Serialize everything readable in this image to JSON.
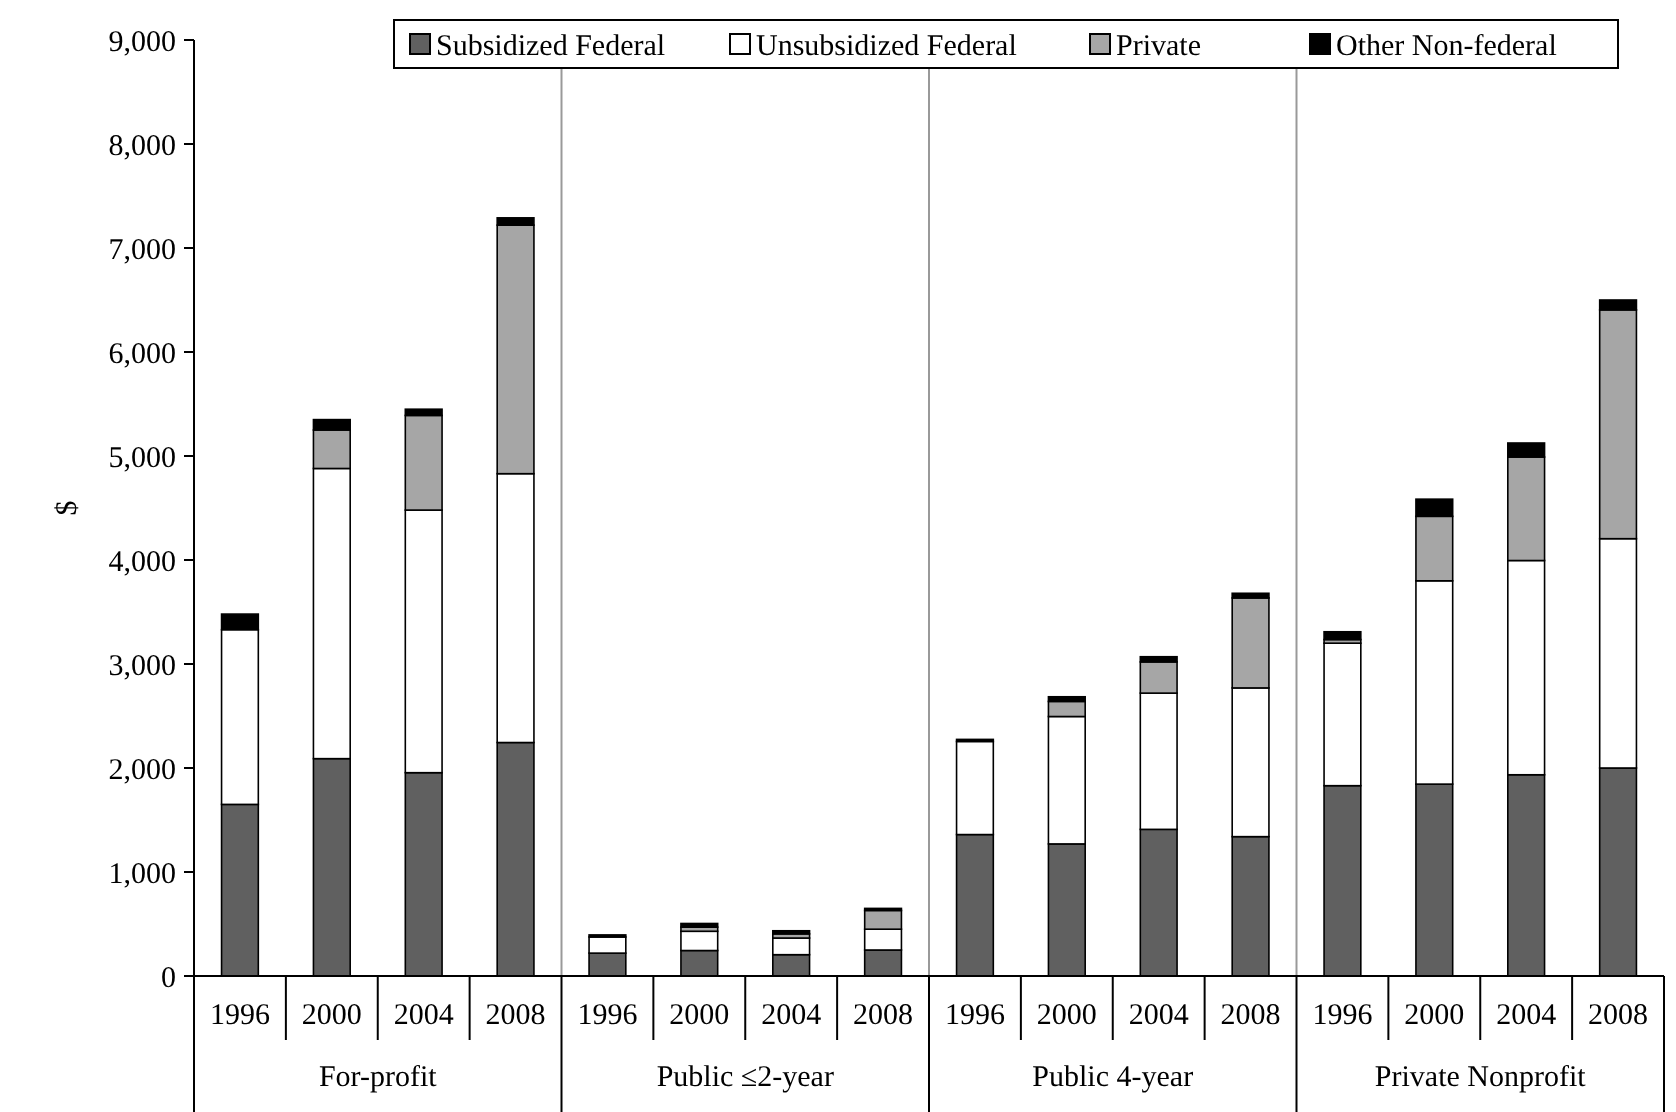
{
  "chart_data": {
    "type": "bar",
    "stacked": true,
    "ylabel": "$",
    "categories": [
      "1996",
      "2000",
      "2004",
      "2008",
      "1996",
      "2000",
      "2004",
      "2008",
      "1996",
      "2000",
      "2004",
      "2008",
      "1996",
      "2000",
      "2004",
      "2008"
    ],
    "annotations": [
      "For-profit",
      "Public ≤2-year",
      "Public 4-year",
      "Private Nonprofit"
    ],
    "series": [
      {
        "name": "Subsidized Federal",
        "color": "#606060",
        "values": [
          1650,
          2090,
          1955,
          2245,
          220,
          245,
          205,
          250,
          1360,
          1270,
          1410,
          1340,
          1830,
          1845,
          1935,
          2000
        ]
      },
      {
        "name": "Unsubsidized Federal",
        "color": "#ffffff",
        "values": [
          1680,
          2790,
          2525,
          2585,
          155,
          185,
          160,
          200,
          895,
          1225,
          1310,
          1430,
          1370,
          1955,
          2060,
          2205
        ]
      },
      {
        "name": "Private",
        "color": "#a6a6a6",
        "values": [
          0,
          370,
          910,
          2390,
          0,
          40,
          40,
          180,
          0,
          145,
          300,
          865,
          35,
          620,
          995,
          2200
        ]
      },
      {
        "name": "Other Non-federal",
        "color": "#000000",
        "values": [
          150,
          100,
          60,
          70,
          20,
          35,
          30,
          20,
          20,
          45,
          50,
          45,
          75,
          165,
          135,
          95
        ]
      }
    ],
    "ylim": [
      0,
      9000
    ],
    "yticks": [
      {
        "value": 0,
        "label": "0"
      },
      {
        "value": 1000,
        "label": "1,000"
      },
      {
        "value": 2000,
        "label": "2,000"
      },
      {
        "value": 3000,
        "label": "3,000"
      },
      {
        "value": 4000,
        "label": "4,000"
      },
      {
        "value": 5000,
        "label": "5,000"
      },
      {
        "value": 6000,
        "label": "6,000"
      },
      {
        "value": 7000,
        "label": "7,000"
      },
      {
        "value": 8000,
        "label": "8,000"
      },
      {
        "value": 9000,
        "label": "9,000"
      }
    ],
    "legend": "top",
    "grid": false
  }
}
